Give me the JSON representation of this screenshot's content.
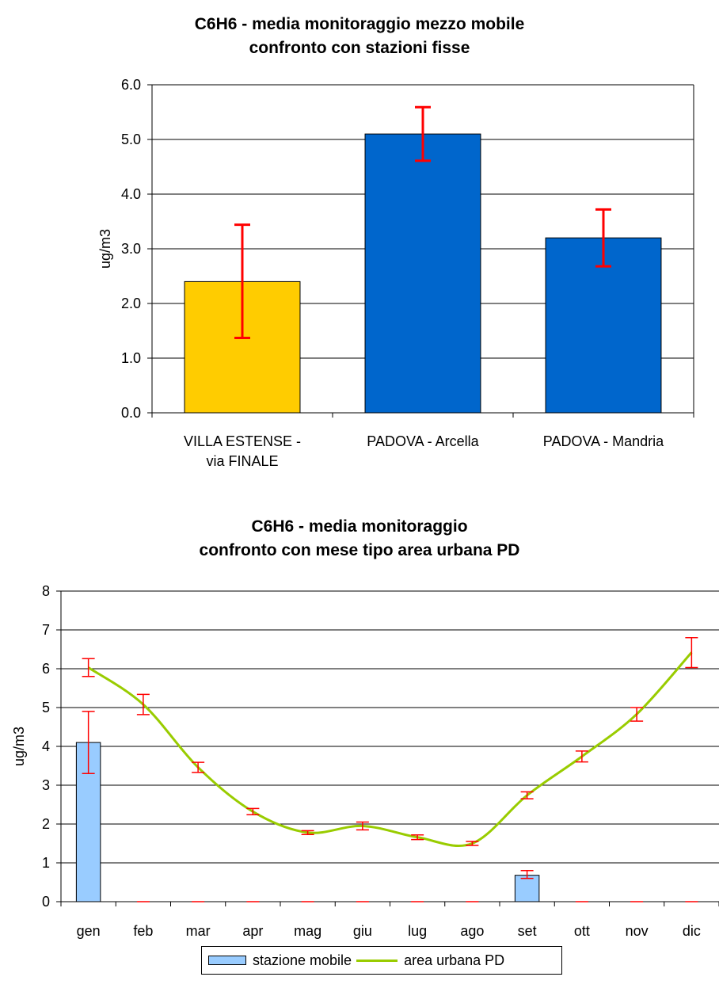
{
  "chart_data": [
    {
      "type": "bar",
      "title_lines": [
        "C6H6 - media monitoraggio mezzo mobile",
        "confronto con stazioni fisse"
      ],
      "ylabel": "ug/m3",
      "ylim": [
        0,
        6
      ],
      "yticks": [
        "0.0",
        "1.0",
        "2.0",
        "3.0",
        "4.0",
        "5.0",
        "6.0"
      ],
      "grid": true,
      "categories": [
        [
          "VILLA ESTENSE -",
          "via FINALE"
        ],
        [
          "PADOVA - Arcella"
        ],
        [
          "PADOVA - Mandria"
        ]
      ],
      "values": [
        2.4,
        5.1,
        3.2
      ],
      "error_low": [
        1.37,
        4.61,
        2.68
      ],
      "error_high": [
        3.44,
        5.59,
        3.72
      ],
      "colors": [
        "#ffcc00",
        "#0066cc",
        "#0066cc"
      ],
      "error_color": "#ff0000"
    },
    {
      "type": "bar",
      "title_lines": [
        "C6H6 -  media monitoraggio",
        "confronto con mese tipo area urbana PD"
      ],
      "ylabel": "ug/m3",
      "ylim": [
        0,
        8
      ],
      "yticks": [
        "0",
        "1",
        "2",
        "3",
        "4",
        "5",
        "6",
        "7",
        "8"
      ],
      "grid": true,
      "categories": [
        "gen",
        "feb",
        "mar",
        "apr",
        "mag",
        "giu",
        "lug",
        "ago",
        "set",
        "ott",
        "nov",
        "dic"
      ],
      "series": [
        {
          "name": "stazione mobile",
          "type": "bar",
          "color": "#99ccff",
          "values": [
            4.1,
            0,
            0,
            0,
            0,
            0,
            0,
            0,
            0.68,
            0,
            0,
            0
          ],
          "error_low": [
            3.3,
            0,
            0,
            0,
            0,
            0,
            0,
            0,
            0.6,
            0,
            0,
            0
          ],
          "error_high": [
            4.9,
            0,
            0,
            0,
            0,
            0,
            0,
            0,
            0.8,
            0,
            0,
            0
          ]
        },
        {
          "name": "area urbana PD",
          "type": "line",
          "color": "#99cc00",
          "values": [
            6.03,
            5.08,
            3.46,
            2.32,
            1.78,
            1.95,
            1.66,
            1.5,
            2.74,
            3.74,
            4.83,
            6.42
          ],
          "error_low": [
            5.8,
            4.82,
            3.33,
            2.24,
            1.73,
            1.85,
            1.6,
            1.45,
            2.65,
            3.6,
            4.65,
            6.03
          ],
          "error_high": [
            6.26,
            5.34,
            3.59,
            2.4,
            1.83,
            2.05,
            1.72,
            1.55,
            2.83,
            3.88,
            5.0,
            6.8
          ]
        }
      ],
      "error_color": "#ff0000",
      "legend_position": "bottom"
    }
  ]
}
